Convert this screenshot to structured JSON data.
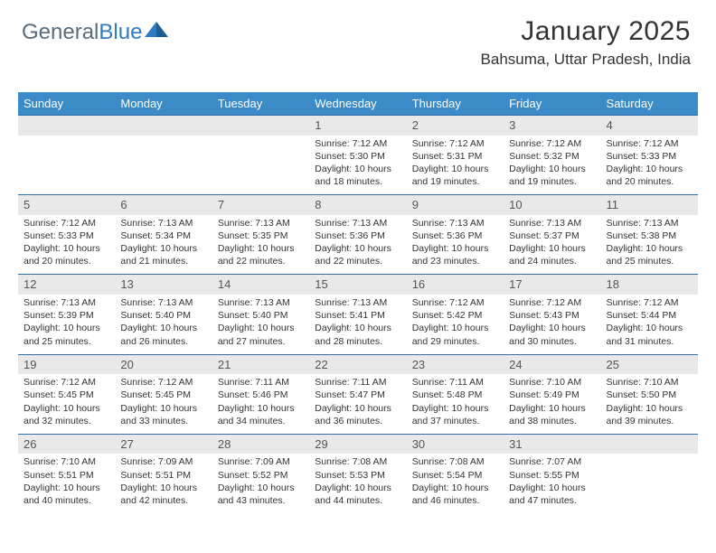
{
  "logo": {
    "text1": "General",
    "text2": "Blue"
  },
  "title": "January 2025",
  "subtitle": "Bahsuma, Uttar Pradesh, India",
  "colors": {
    "header_bg": "#3b8bc8",
    "header_text": "#ffffff",
    "daynum_bg": "#e9e9e9",
    "daynum_border_top": "#2f6fa8",
    "body_text": "#333333",
    "logo_gray": "#5a6b7b",
    "logo_blue": "#2f7bbf"
  },
  "dow": [
    "Sunday",
    "Monday",
    "Tuesday",
    "Wednesday",
    "Thursday",
    "Friday",
    "Saturday"
  ],
  "weeks": [
    [
      {
        "n": "",
        "sr": "",
        "ss": "",
        "dl": ""
      },
      {
        "n": "",
        "sr": "",
        "ss": "",
        "dl": ""
      },
      {
        "n": "",
        "sr": "",
        "ss": "",
        "dl": ""
      },
      {
        "n": "1",
        "sr": "Sunrise: 7:12 AM",
        "ss": "Sunset: 5:30 PM",
        "dl": "Daylight: 10 hours and 18 minutes."
      },
      {
        "n": "2",
        "sr": "Sunrise: 7:12 AM",
        "ss": "Sunset: 5:31 PM",
        "dl": "Daylight: 10 hours and 19 minutes."
      },
      {
        "n": "3",
        "sr": "Sunrise: 7:12 AM",
        "ss": "Sunset: 5:32 PM",
        "dl": "Daylight: 10 hours and 19 minutes."
      },
      {
        "n": "4",
        "sr": "Sunrise: 7:12 AM",
        "ss": "Sunset: 5:33 PM",
        "dl": "Daylight: 10 hours and 20 minutes."
      }
    ],
    [
      {
        "n": "5",
        "sr": "Sunrise: 7:12 AM",
        "ss": "Sunset: 5:33 PM",
        "dl": "Daylight: 10 hours and 20 minutes."
      },
      {
        "n": "6",
        "sr": "Sunrise: 7:13 AM",
        "ss": "Sunset: 5:34 PM",
        "dl": "Daylight: 10 hours and 21 minutes."
      },
      {
        "n": "7",
        "sr": "Sunrise: 7:13 AM",
        "ss": "Sunset: 5:35 PM",
        "dl": "Daylight: 10 hours and 22 minutes."
      },
      {
        "n": "8",
        "sr": "Sunrise: 7:13 AM",
        "ss": "Sunset: 5:36 PM",
        "dl": "Daylight: 10 hours and 22 minutes."
      },
      {
        "n": "9",
        "sr": "Sunrise: 7:13 AM",
        "ss": "Sunset: 5:36 PM",
        "dl": "Daylight: 10 hours and 23 minutes."
      },
      {
        "n": "10",
        "sr": "Sunrise: 7:13 AM",
        "ss": "Sunset: 5:37 PM",
        "dl": "Daylight: 10 hours and 24 minutes."
      },
      {
        "n": "11",
        "sr": "Sunrise: 7:13 AM",
        "ss": "Sunset: 5:38 PM",
        "dl": "Daylight: 10 hours and 25 minutes."
      }
    ],
    [
      {
        "n": "12",
        "sr": "Sunrise: 7:13 AM",
        "ss": "Sunset: 5:39 PM",
        "dl": "Daylight: 10 hours and 25 minutes."
      },
      {
        "n": "13",
        "sr": "Sunrise: 7:13 AM",
        "ss": "Sunset: 5:40 PM",
        "dl": "Daylight: 10 hours and 26 minutes."
      },
      {
        "n": "14",
        "sr": "Sunrise: 7:13 AM",
        "ss": "Sunset: 5:40 PM",
        "dl": "Daylight: 10 hours and 27 minutes."
      },
      {
        "n": "15",
        "sr": "Sunrise: 7:13 AM",
        "ss": "Sunset: 5:41 PM",
        "dl": "Daylight: 10 hours and 28 minutes."
      },
      {
        "n": "16",
        "sr": "Sunrise: 7:12 AM",
        "ss": "Sunset: 5:42 PM",
        "dl": "Daylight: 10 hours and 29 minutes."
      },
      {
        "n": "17",
        "sr": "Sunrise: 7:12 AM",
        "ss": "Sunset: 5:43 PM",
        "dl": "Daylight: 10 hours and 30 minutes."
      },
      {
        "n": "18",
        "sr": "Sunrise: 7:12 AM",
        "ss": "Sunset: 5:44 PM",
        "dl": "Daylight: 10 hours and 31 minutes."
      }
    ],
    [
      {
        "n": "19",
        "sr": "Sunrise: 7:12 AM",
        "ss": "Sunset: 5:45 PM",
        "dl": "Daylight: 10 hours and 32 minutes."
      },
      {
        "n": "20",
        "sr": "Sunrise: 7:12 AM",
        "ss": "Sunset: 5:45 PM",
        "dl": "Daylight: 10 hours and 33 minutes."
      },
      {
        "n": "21",
        "sr": "Sunrise: 7:11 AM",
        "ss": "Sunset: 5:46 PM",
        "dl": "Daylight: 10 hours and 34 minutes."
      },
      {
        "n": "22",
        "sr": "Sunrise: 7:11 AM",
        "ss": "Sunset: 5:47 PM",
        "dl": "Daylight: 10 hours and 36 minutes."
      },
      {
        "n": "23",
        "sr": "Sunrise: 7:11 AM",
        "ss": "Sunset: 5:48 PM",
        "dl": "Daylight: 10 hours and 37 minutes."
      },
      {
        "n": "24",
        "sr": "Sunrise: 7:10 AM",
        "ss": "Sunset: 5:49 PM",
        "dl": "Daylight: 10 hours and 38 minutes."
      },
      {
        "n": "25",
        "sr": "Sunrise: 7:10 AM",
        "ss": "Sunset: 5:50 PM",
        "dl": "Daylight: 10 hours and 39 minutes."
      }
    ],
    [
      {
        "n": "26",
        "sr": "Sunrise: 7:10 AM",
        "ss": "Sunset: 5:51 PM",
        "dl": "Daylight: 10 hours and 40 minutes."
      },
      {
        "n": "27",
        "sr": "Sunrise: 7:09 AM",
        "ss": "Sunset: 5:51 PM",
        "dl": "Daylight: 10 hours and 42 minutes."
      },
      {
        "n": "28",
        "sr": "Sunrise: 7:09 AM",
        "ss": "Sunset: 5:52 PM",
        "dl": "Daylight: 10 hours and 43 minutes."
      },
      {
        "n": "29",
        "sr": "Sunrise: 7:08 AM",
        "ss": "Sunset: 5:53 PM",
        "dl": "Daylight: 10 hours and 44 minutes."
      },
      {
        "n": "30",
        "sr": "Sunrise: 7:08 AM",
        "ss": "Sunset: 5:54 PM",
        "dl": "Daylight: 10 hours and 46 minutes."
      },
      {
        "n": "31",
        "sr": "Sunrise: 7:07 AM",
        "ss": "Sunset: 5:55 PM",
        "dl": "Daylight: 10 hours and 47 minutes."
      },
      {
        "n": "",
        "sr": "",
        "ss": "",
        "dl": ""
      }
    ]
  ]
}
